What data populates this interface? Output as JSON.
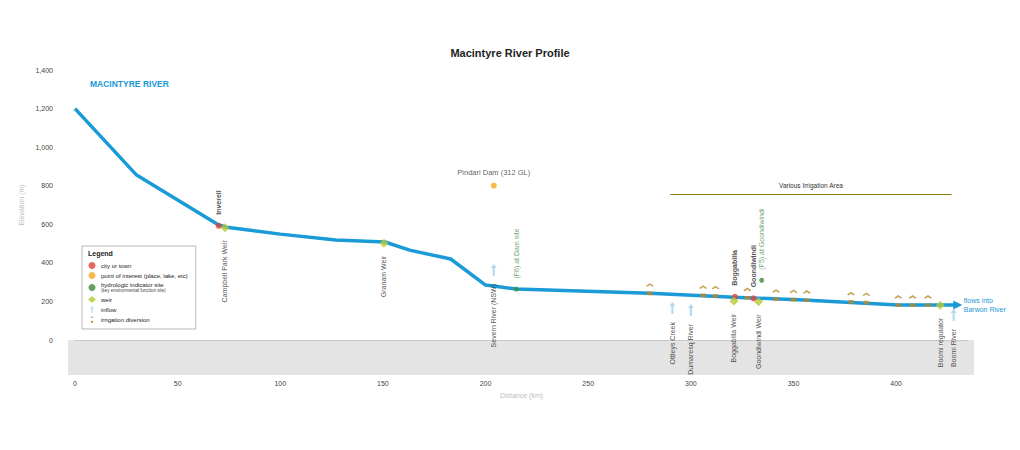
{
  "chart_data": {
    "type": "line",
    "title": "Macintyre River Profile",
    "x_label": "Distance (km)",
    "y_label": "Elevation (m)",
    "xlim": [
      0,
      435
    ],
    "xticks": [
      0,
      50,
      100,
      150,
      200,
      250,
      300,
      350,
      400
    ],
    "ylim": [
      0,
      1400
    ],
    "yticks": [
      0,
      200,
      400,
      600,
      800,
      {
        "value": 1000,
        "label": "1,000"
      },
      {
        "value": 1200,
        "label": "1,200"
      },
      {
        "value": 1400,
        "label": "1,400"
      }
    ],
    "grid": false,
    "legend": "lower left",
    "legend_title": "Legend",
    "series": [
      {
        "name": "MACINTYRE RIVER",
        "type": "line",
        "color": "#1a9ad6",
        "end_label": "flows into Barwon River",
        "x": [
          0,
          30,
          70,
          74,
          100,
          127,
          151,
          163,
          183,
          200,
          215,
          280,
          321,
          355,
          401,
          418,
          430
        ],
        "values": [
          1200,
          855,
          596,
          585,
          549,
          518,
          508,
          466,
          420,
          285,
          264,
          243,
          222,
          207,
          181,
          181,
          181
        ]
      },
      {
        "name": "city or town",
        "type": "scatter",
        "marker": "town",
        "color": "#e0413a",
        "x": [
          70,
          321.5,
          330.5
        ],
        "values": [
          592,
          224,
          216
        ],
        "labels": [
          "Inverell",
          "Boggabilla",
          "Goondiwindi"
        ]
      },
      {
        "name": "point of interest (place, lake, etc)",
        "type": "scatter",
        "marker": "poi",
        "color": "#f5a623",
        "x": [
          204
        ],
        "values": [
          800
        ],
        "labels": [
          "Pindari Dam (312 GL)"
        ]
      },
      {
        "name": "hydrologic indicator site\n(key environmental function site)",
        "type": "scatter",
        "marker": "site",
        "color": "#3f8a3a",
        "x": [
          215,
          334.5
        ],
        "values": [
          264,
          310
        ],
        "labels": [
          "(F6) at Dam site",
          "(F5) at Goondiwindi"
        ]
      },
      {
        "name": "weir",
        "type": "scatter",
        "marker": "diamond",
        "color": "#b5c934",
        "x": [
          73,
          150.5,
          321,
          333,
          421.5
        ],
        "values": [
          582,
          502,
          202,
          198,
          180
        ],
        "labels": [
          "Campbell Park Weir",
          "Granam Weir",
          "Boggabilla Weir",
          "Goondiwindi Weir",
          "Boomi regulator"
        ]
      },
      {
        "name": "inflow",
        "type": "scatter",
        "marker": "arrow",
        "color": "#9fcdea",
        "x": [
          204,
          291,
          300,
          428
        ],
        "values": [
          363,
          166,
          155,
          130
        ],
        "labels": [
          "Severn River (NSW)",
          "Ottleys Creek",
          "Dumaresq River",
          "Boomi River"
        ]
      },
      {
        "name": "irrigation diversion",
        "type": "scatter",
        "marker": "diversion",
        "color": "#b8892a",
        "x": [
          280,
          306,
          312,
          327.5,
          341.5,
          350,
          356.5,
          378,
          385.5,
          401,
          408,
          415.5
        ],
        "values": [
          243,
          232,
          230,
          220,
          212,
          210,
          207,
          198,
          195,
          181,
          181,
          181
        ]
      }
    ],
    "annotations": [
      {
        "text": "Various Irrigation Area",
        "x": [
          290,
          427
        ],
        "y": 755
      }
    ]
  }
}
